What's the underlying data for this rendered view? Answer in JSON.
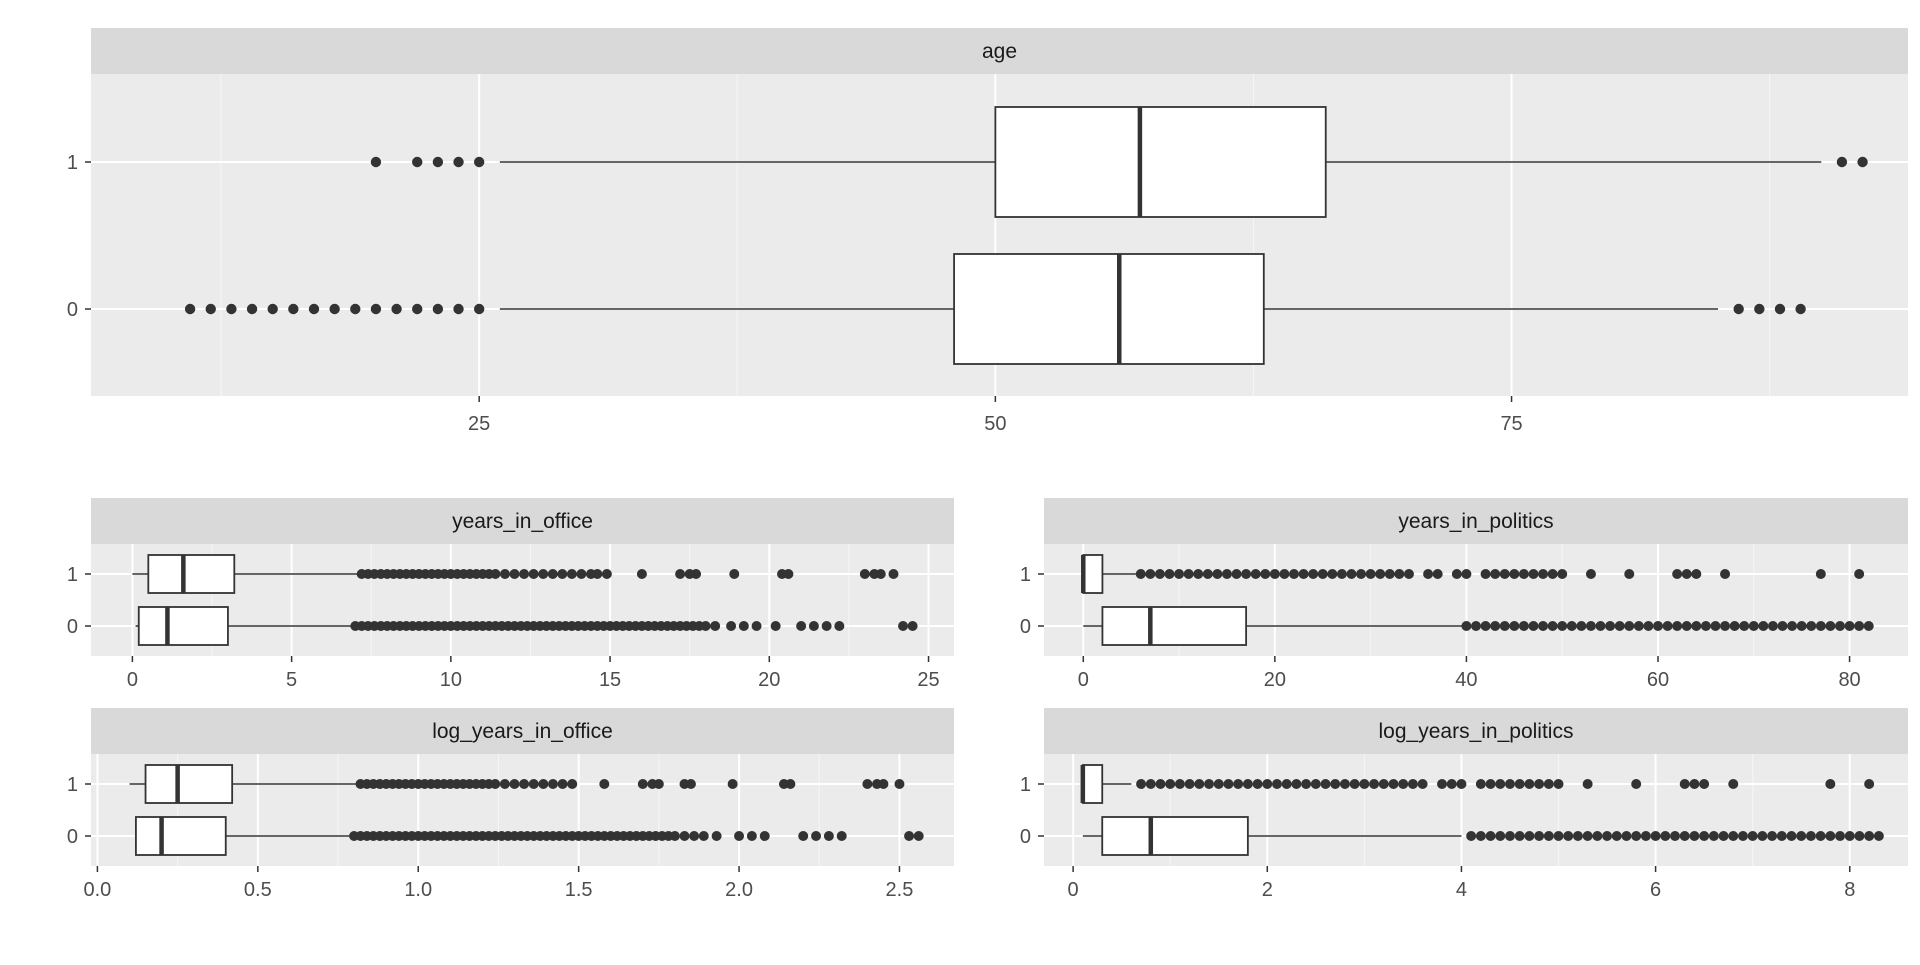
{
  "colors": {
    "panel_background": "#ebebeb",
    "strip_background": "#d9d9d9",
    "grid_major": "#ffffff",
    "grid_minor": "#f5f5f5",
    "box_fill": "#ffffff",
    "box_outline": "#333333",
    "tick_text": "#4d4d4d",
    "strip_text": "#1a1a1a"
  },
  "chart_data": [
    {
      "type": "boxplot",
      "title": "age",
      "orientation": "horizontal",
      "categories": [
        "0",
        "1"
      ],
      "xlim": [
        6.2,
        94.2
      ],
      "xticks": [
        25,
        50,
        75
      ],
      "xtick_labels": [
        "25",
        "50",
        "75"
      ],
      "grid": true,
      "boxes": [
        {
          "category": "0",
          "whisker_low": 26,
          "q1": 48,
          "median": 56,
          "q3": 63,
          "whisker_high": 85,
          "outliers": [
            11,
            12,
            13,
            14,
            15,
            16,
            17,
            18,
            19,
            20,
            21,
            22,
            23,
            24,
            25,
            86,
            87,
            88,
            89
          ]
        },
        {
          "category": "1",
          "whisker_low": 26,
          "q1": 50,
          "median": 57,
          "q3": 66,
          "whisker_high": 90,
          "outliers": [
            20,
            22,
            23,
            24,
            25,
            91,
            92
          ]
        }
      ]
    },
    {
      "type": "boxplot",
      "title": "years_in_office",
      "orientation": "horizontal",
      "categories": [
        "0",
        "1"
      ],
      "xlim": [
        -1.3,
        25.8
      ],
      "xticks": [
        0,
        5,
        10,
        15,
        20,
        25
      ],
      "xtick_labels": [
        "0",
        "5",
        "10",
        "15",
        "20",
        "25"
      ],
      "grid": true,
      "boxes": [
        {
          "category": "0",
          "whisker_low": 0.1,
          "q1": 0.2,
          "median": 1.1,
          "q3": 3.0,
          "whisker_high": 7.0,
          "outliers": [
            7.0,
            7.2,
            7.4,
            7.6,
            7.8,
            8.0,
            8.2,
            8.4,
            8.6,
            8.8,
            9.0,
            9.2,
            9.4,
            9.6,
            9.8,
            10.0,
            10.2,
            10.4,
            10.6,
            10.8,
            11.0,
            11.2,
            11.4,
            11.6,
            11.8,
            12.0,
            12.2,
            12.4,
            12.6,
            12.8,
            13.0,
            13.2,
            13.4,
            13.6,
            13.8,
            14.0,
            14.2,
            14.4,
            14.6,
            14.8,
            15.0,
            15.2,
            15.4,
            15.6,
            15.8,
            16.0,
            16.2,
            16.4,
            16.6,
            16.8,
            17.0,
            17.2,
            17.4,
            17.6,
            17.8,
            18.0,
            18.3,
            18.8,
            19.2,
            19.6,
            20.2,
            21.0,
            21.4,
            21.8,
            22.2,
            24.2,
            24.5
          ]
        },
        {
          "category": "1",
          "whisker_low": 0.0,
          "q1": 0.5,
          "median": 1.6,
          "q3": 3.2,
          "whisker_high": 7.2,
          "outliers": [
            7.2,
            7.4,
            7.6,
            7.8,
            8.0,
            8.2,
            8.4,
            8.6,
            8.8,
            9.0,
            9.2,
            9.4,
            9.6,
            9.8,
            10.0,
            10.2,
            10.4,
            10.6,
            10.8,
            11.0,
            11.2,
            11.4,
            11.7,
            12.0,
            12.3,
            12.6,
            12.9,
            13.2,
            13.5,
            13.8,
            14.1,
            14.4,
            14.6,
            14.9,
            16.0,
            17.2,
            17.5,
            17.7,
            18.9,
            20.4,
            20.6,
            23.0,
            23.3,
            23.5,
            23.9
          ]
        }
      ]
    },
    {
      "type": "boxplot",
      "title": "years_in_politics",
      "orientation": "horizontal",
      "categories": [
        "0",
        "1"
      ],
      "xlim": [
        -4.1,
        86.1
      ],
      "xticks": [
        0,
        20,
        40,
        60,
        80
      ],
      "xtick_labels": [
        "0",
        "20",
        "40",
        "60",
        "80"
      ],
      "grid": true,
      "boxes": [
        {
          "category": "0",
          "whisker_low": 0,
          "q1": 2,
          "median": 7,
          "q3": 17,
          "whisker_high": 40,
          "outliers": [
            40,
            41,
            42,
            43,
            44,
            45,
            46,
            47,
            48,
            49,
            50,
            51,
            52,
            53,
            54,
            55,
            56,
            57,
            58,
            59,
            60,
            61,
            62,
            63,
            64,
            65,
            66,
            67,
            68,
            69,
            70,
            71,
            72,
            73,
            74,
            75,
            76,
            77,
            78,
            79,
            80,
            81,
            82
          ]
        },
        {
          "category": "1",
          "whisker_low": 0,
          "q1": 0,
          "median": 0,
          "q3": 2,
          "whisker_high": 6,
          "outliers": [
            6,
            7,
            8,
            9,
            10,
            11,
            12,
            13,
            14,
            15,
            16,
            17,
            18,
            19,
            20,
            21,
            22,
            23,
            24,
            25,
            26,
            27,
            28,
            29,
            30,
            31,
            32,
            33,
            34,
            36,
            37,
            39,
            40,
            42,
            43,
            44,
            45,
            46,
            47,
            48,
            49,
            50,
            53,
            57,
            62,
            63,
            64,
            67,
            77,
            81
          ]
        }
      ]
    },
    {
      "type": "boxplot",
      "title": "log_years_in_office",
      "orientation": "horizontal",
      "categories": [
        "0",
        "1"
      ],
      "xlim": [
        -0.02,
        2.67
      ],
      "xticks": [
        0.0,
        0.5,
        1.0,
        1.5,
        2.0,
        2.5
      ],
      "xtick_labels": [
        "0.0",
        "0.5",
        "1.0",
        "1.5",
        "2.0",
        "2.5"
      ],
      "grid": true,
      "boxes": [
        {
          "category": "0",
          "whisker_low": 0.12,
          "q1": 0.12,
          "median": 0.2,
          "q3": 0.4,
          "whisker_high": 0.8,
          "outliers": [
            0.8,
            0.82,
            0.84,
            0.86,
            0.88,
            0.9,
            0.92,
            0.94,
            0.96,
            0.98,
            1.0,
            1.02,
            1.04,
            1.06,
            1.08,
            1.1,
            1.12,
            1.14,
            1.16,
            1.18,
            1.2,
            1.22,
            1.24,
            1.26,
            1.28,
            1.3,
            1.32,
            1.34,
            1.36,
            1.38,
            1.4,
            1.42,
            1.44,
            1.46,
            1.48,
            1.5,
            1.52,
            1.54,
            1.56,
            1.58,
            1.6,
            1.62,
            1.64,
            1.66,
            1.68,
            1.7,
            1.72,
            1.74,
            1.76,
            1.78,
            1.8,
            1.83,
            1.86,
            1.89,
            1.93,
            2.0,
            2.04,
            2.08,
            2.2,
            2.24,
            2.28,
            2.32,
            2.53,
            2.56
          ]
        },
        {
          "category": "1",
          "whisker_low": 0.1,
          "q1": 0.15,
          "median": 0.25,
          "q3": 0.42,
          "whisker_high": 0.82,
          "outliers": [
            0.82,
            0.84,
            0.86,
            0.88,
            0.9,
            0.92,
            0.94,
            0.96,
            0.98,
            1.0,
            1.02,
            1.04,
            1.06,
            1.08,
            1.1,
            1.12,
            1.14,
            1.16,
            1.18,
            1.2,
            1.22,
            1.24,
            1.27,
            1.3,
            1.33,
            1.36,
            1.39,
            1.42,
            1.45,
            1.48,
            1.58,
            1.7,
            1.73,
            1.75,
            1.83,
            1.85,
            1.98,
            2.14,
            2.16,
            2.4,
            2.43,
            2.45,
            2.5
          ]
        }
      ]
    },
    {
      "type": "boxplot",
      "title": "log_years_in_politics",
      "orientation": "horizontal",
      "categories": [
        "0",
        "1"
      ],
      "xlim": [
        -0.3,
        8.6
      ],
      "xticks": [
        0,
        2,
        4,
        6,
        8
      ],
      "xtick_labels": [
        "0",
        "2",
        "4",
        "6",
        "8"
      ],
      "grid": true,
      "boxes": [
        {
          "category": "0",
          "whisker_low": 0.1,
          "q1": 0.3,
          "median": 0.8,
          "q3": 1.8,
          "whisker_high": 4.0,
          "outliers": [
            4.1,
            4.2,
            4.3,
            4.4,
            4.5,
            4.6,
            4.7,
            4.8,
            4.9,
            5.0,
            5.1,
            5.2,
            5.3,
            5.4,
            5.5,
            5.6,
            5.7,
            5.8,
            5.9,
            6.0,
            6.1,
            6.2,
            6.3,
            6.4,
            6.5,
            6.6,
            6.7,
            6.8,
            6.9,
            7.0,
            7.1,
            7.2,
            7.3,
            7.4,
            7.5,
            7.6,
            7.7,
            7.8,
            7.9,
            8.0,
            8.1,
            8.2,
            8.3
          ]
        },
        {
          "category": "1",
          "whisker_low": 0.1,
          "q1": 0.1,
          "median": 0.1,
          "q3": 0.3,
          "whisker_high": 0.6,
          "outliers": [
            0.7,
            0.8,
            0.9,
            1.0,
            1.1,
            1.2,
            1.3,
            1.4,
            1.5,
            1.6,
            1.7,
            1.8,
            1.9,
            2.0,
            2.1,
            2.2,
            2.3,
            2.4,
            2.5,
            2.6,
            2.7,
            2.8,
            2.9,
            3.0,
            3.1,
            3.2,
            3.3,
            3.4,
            3.5,
            3.6,
            3.8,
            3.9,
            4.0,
            4.2,
            4.3,
            4.4,
            4.5,
            4.6,
            4.7,
            4.8,
            4.9,
            5.0,
            5.3,
            5.8,
            6.3,
            6.4,
            6.5,
            6.8,
            7.8,
            8.2
          ]
        }
      ]
    }
  ]
}
